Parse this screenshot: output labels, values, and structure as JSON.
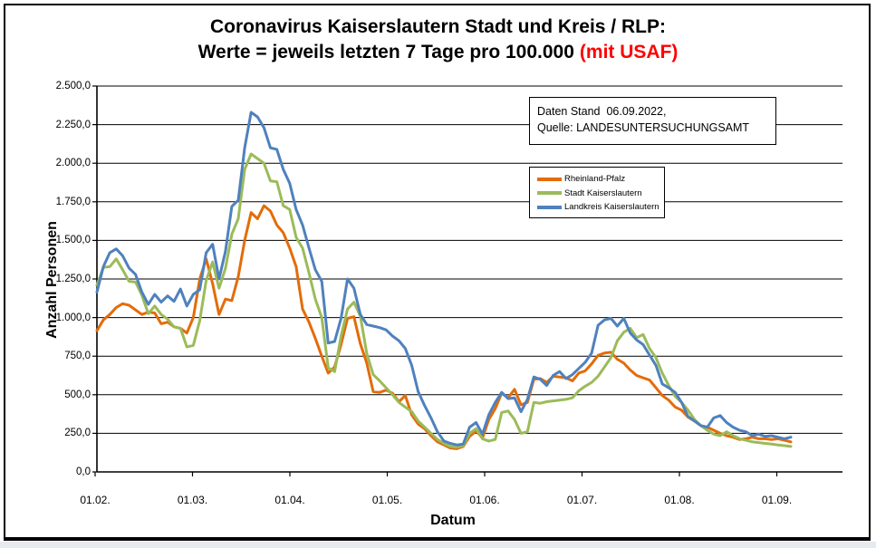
{
  "title": {
    "line1": "Coronavirus Kaiserslautern Stadt und Kreis / RLP:",
    "line2": "Werte = jeweils letzten 7 Tage pro 100.000",
    "line2_suffix": "(mit USAF)",
    "suffix_color": "#ff0000"
  },
  "info_box": {
    "line1": "Daten Stand  06.09.2022,",
    "line2": "Quelle: LANDESUNTERSUCHUNGSAMT"
  },
  "chart_data": {
    "type": "line",
    "title": "Coronavirus Kaiserslautern Stadt und Kreis / RLP: Werte = jeweils letzten 7 Tage pro 100.000 (mit USAF)",
    "xlabel": "Datum",
    "ylabel": "Anzahl Personen",
    "ylim": [
      0,
      2500
    ],
    "y_tick_step": 250,
    "y_tick_labels": [
      "0,0",
      "250,0",
      "500,0",
      "750,0",
      "1.000,0",
      "1.250,0",
      "1.500,0",
      "1.750,0",
      "2.000,0",
      "2.250,0",
      "2.500,0"
    ],
    "x_tick_labels": [
      "01.02.",
      "01.03.",
      "01.04.",
      "01.05.",
      "01.06.",
      "01.07.",
      "01.08.",
      "01.09."
    ],
    "x_start_date": "01.02.2022",
    "x_end_date": "06.09.2022",
    "sample_step_days": 2,
    "grid": "horizontal",
    "legend_position": "middle-right",
    "series": [
      {
        "name": "Rheinland-Pfalz",
        "color": "#E36C09",
        "values": [
          915,
          985,
          1020,
          1065,
          1090,
          1080,
          1050,
          1020,
          1035,
          1030,
          960,
          970,
          940,
          930,
          900,
          1000,
          1250,
          1380,
          1220,
          1020,
          1120,
          1110,
          1265,
          1500,
          1680,
          1640,
          1725,
          1690,
          1600,
          1550,
          1450,
          1330,
          1055,
          970,
          865,
          750,
          640,
          680,
          825,
          995,
          1005,
          830,
          705,
          520,
          515,
          530,
          510,
          455,
          495,
          370,
          310,
          280,
          235,
          195,
          175,
          155,
          150,
          165,
          230,
          265,
          220,
          340,
          410,
          510,
          480,
          535,
          435,
          450,
          600,
          605,
          580,
          620,
          615,
          610,
          590,
          640,
          655,
          700,
          755,
          770,
          775,
          730,
          705,
          660,
          625,
          610,
          595,
          545,
          495,
          465,
          420,
          400,
          355,
          330,
          300,
          290,
          270,
          250,
          235,
          225,
          210,
          215,
          225,
          215,
          215,
          210,
          215,
          205,
          195
        ]
      },
      {
        "name": "Stadt Kaiserslautern",
        "color": "#9BBB59",
        "values": [
          1210,
          1325,
          1330,
          1380,
          1310,
          1235,
          1230,
          1145,
          1025,
          1075,
          1020,
          990,
          940,
          930,
          810,
          820,
          980,
          1240,
          1360,
          1190,
          1320,
          1540,
          1640,
          1960,
          2060,
          2030,
          2000,
          1885,
          1880,
          1725,
          1700,
          1520,
          1450,
          1290,
          1120,
          1000,
          675,
          650,
          880,
          1055,
          1100,
          1010,
          765,
          630,
          590,
          545,
          500,
          450,
          420,
          390,
          330,
          290,
          250,
          210,
          185,
          165,
          160,
          170,
          250,
          280,
          215,
          200,
          210,
          385,
          395,
          340,
          250,
          260,
          450,
          445,
          455,
          460,
          465,
          470,
          480,
          525,
          555,
          580,
          620,
          680,
          740,
          850,
          905,
          930,
          870,
          890,
          800,
          740,
          640,
          560,
          490,
          450,
          400,
          340,
          300,
          270,
          245,
          235,
          260,
          235,
          215,
          205,
          195,
          190,
          185,
          180,
          175,
          170,
          165
        ]
      },
      {
        "name": "Landkreis Kaiserslautern",
        "color": "#4F81BD",
        "values": [
          1165,
          1330,
          1420,
          1445,
          1400,
          1320,
          1280,
          1165,
          1085,
          1150,
          1100,
          1140,
          1105,
          1185,
          1075,
          1150,
          1180,
          1420,
          1475,
          1250,
          1430,
          1720,
          1760,
          2100,
          2330,
          2300,
          2230,
          2100,
          2090,
          1960,
          1870,
          1700,
          1600,
          1450,
          1310,
          1235,
          835,
          845,
          995,
          1250,
          1190,
          1020,
          955,
          945,
          935,
          920,
          880,
          850,
          800,
          690,
          520,
          430,
          350,
          260,
          200,
          185,
          175,
          180,
          290,
          320,
          245,
          370,
          450,
          515,
          475,
          480,
          390,
          470,
          615,
          600,
          560,
          625,
          650,
          605,
          630,
          670,
          710,
          770,
          950,
          985,
          995,
          945,
          995,
          900,
          855,
          825,
          757,
          690,
          570,
          545,
          515,
          450,
          360,
          330,
          300,
          290,
          350,
          365,
          320,
          290,
          270,
          260,
          235,
          245,
          230,
          235,
          225,
          215,
          225
        ]
      }
    ]
  }
}
